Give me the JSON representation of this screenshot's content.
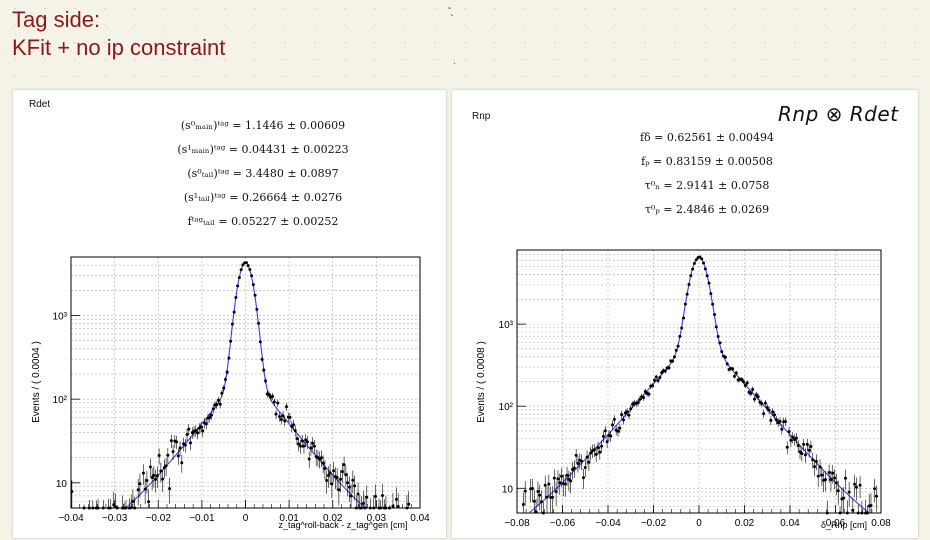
{
  "slide": {
    "title_line1": "Tag side:",
    "title_line2": "KFit + no ip constraint"
  },
  "panels": [
    {
      "name": "Rdet",
      "params": [
        "(s⁰ₘₐᵢₙ)ᵗᵃᵍ = 1.1446 ± 0.00609",
        "(s¹ₘₐᵢₙ)ᵗᵃᵍ = 0.04431 ± 0.00223",
        "(s⁰ₜₐᵢₗ)ᵗᵃᵍ = 3.4480 ± 0.0897",
        "(s¹ₜₐᵢₗ)ᵗᵃᵍ = 0.26664 ± 0.0276",
        "fᵗᵃᵍₜₐᵢₗ = 0.05227 ± 0.00252"
      ]
    },
    {
      "name": "Rnp",
      "annotation": "Rnp ⊗ Rdet",
      "params": [
        "fδ = 0.62561 ± 0.00494",
        "fₚ = 0.83159 ± 0.00508",
        "τ⁰ₙ = 2.9141 ± 0.0758",
        "τ⁰ₚ = 2.4846 ± 0.0269"
      ]
    }
  ],
  "chart_data": [
    {
      "type": "scatter",
      "name": "Rdet",
      "ylabel": "Events / ( 0.0004 )",
      "xlabel": "z_tag^roll-back - z_tag^gen [cm]",
      "xlim": [
        -0.04,
        0.04
      ],
      "ylim": [
        5,
        5000
      ],
      "yscale": "log",
      "xticks": [
        -0.04,
        -0.03,
        -0.02,
        -0.01,
        0,
        0.01,
        0.02,
        0.03,
        0.04
      ],
      "xtick_labels": [
        "−0.04",
        "−0.03",
        "−0.02",
        "−0.01",
        "0",
        "0.01",
        "0.02",
        "0.03",
        "0.04"
      ],
      "yticks": [
        10,
        100,
        1000
      ],
      "ytick_labels": [
        "10",
        "10²",
        "10³"
      ],
      "grid": true,
      "peak": 4300,
      "model": {
        "f_tail": 0.05227,
        "main_width": 0.00155,
        "tail_width": 0.0066
      }
    },
    {
      "type": "scatter",
      "name": "Rnp",
      "ylabel": "Events / ( 0.0008 )",
      "xlabel": "δ_Rnp [cm]",
      "xlim": [
        -0.08,
        0.08
      ],
      "ylim": [
        5,
        8000
      ],
      "yscale": "log",
      "xticks": [
        -0.08,
        -0.06,
        -0.04,
        -0.02,
        0,
        0.02,
        0.04,
        0.06,
        0.08
      ],
      "xtick_labels": [
        "−0.08",
        "−0.06",
        "−0.04",
        "−0.02",
        "0",
        "0.02",
        "0.04",
        "0.06",
        "0.08"
      ],
      "yticks": [
        10,
        100,
        1000
      ],
      "ytick_labels": [
        "10",
        "10²",
        "10³"
      ],
      "grid": true,
      "peak": 6600,
      "model": {
        "f_tail": 0.12,
        "main_width": 0.0034,
        "tail_width": 0.0138
      }
    }
  ]
}
